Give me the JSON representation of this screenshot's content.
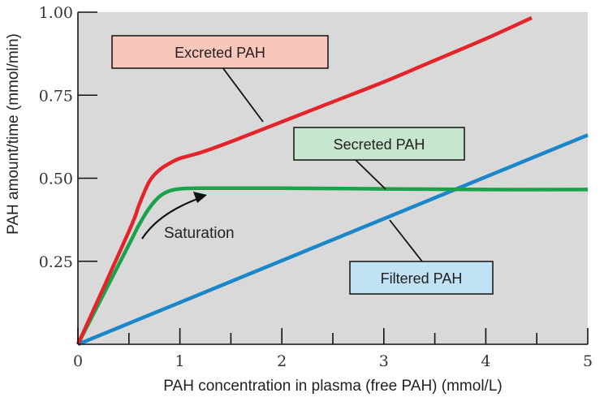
{
  "chart_data": {
    "type": "line",
    "title": "",
    "xlabel": "PAH concentration in plasma (free PAH) (mmol/L)",
    "ylabel": "PAH amount/time (mmol/min)",
    "xlim": [
      0,
      5
    ],
    "ylim": [
      0,
      1.0
    ],
    "x_ticks": [
      0,
      1,
      2,
      3,
      4,
      5
    ],
    "y_ticks": [
      0.25,
      0.5,
      0.75,
      1.0
    ],
    "x_tick_labels": [
      "0",
      "1",
      "2",
      "3",
      "4",
      "5"
    ],
    "y_tick_labels": [
      "0.25",
      "0.50",
      "0.75",
      "1.00"
    ],
    "grid": false,
    "colors": {
      "plot_bg": "#d9d9d9",
      "excreted": "#e3242b",
      "secreted": "#1aa34a",
      "filtered": "#1b87c8",
      "excreted_box": "#f9c7b9",
      "secreted_box": "#c7e6cf",
      "filtered_box": "#c0e2f4"
    },
    "series": [
      {
        "name": "Excreted PAH",
        "color": "#e3242b",
        "points": [
          [
            0,
            0
          ],
          [
            0.5,
            0.34
          ],
          [
            0.6,
            0.42
          ],
          [
            0.7,
            0.49
          ],
          [
            0.8,
            0.525
          ],
          [
            0.9,
            0.545
          ],
          [
            1.0,
            0.56
          ],
          [
            1.2,
            0.577
          ],
          [
            1.5,
            0.61
          ],
          [
            2.0,
            0.67
          ],
          [
            2.5,
            0.73
          ],
          [
            3.0,
            0.79
          ],
          [
            3.5,
            0.855
          ],
          [
            4.0,
            0.92
          ],
          [
            4.45,
            0.983
          ]
        ]
      },
      {
        "name": "Secreted PAH",
        "color": "#1aa34a",
        "points": [
          [
            0,
            0
          ],
          [
            0.5,
            0.3
          ],
          [
            0.6,
            0.36
          ],
          [
            0.7,
            0.41
          ],
          [
            0.8,
            0.445
          ],
          [
            0.9,
            0.462
          ],
          [
            1.0,
            0.468
          ],
          [
            1.2,
            0.47
          ],
          [
            2.0,
            0.47
          ],
          [
            3.0,
            0.468
          ],
          [
            4.0,
            0.466
          ],
          [
            5.0,
            0.466
          ]
        ]
      },
      {
        "name": "Filtered PAH",
        "color": "#1b87c8",
        "points": [
          [
            0,
            0
          ],
          [
            5.0,
            0.63
          ]
        ]
      }
    ],
    "annotations": [
      {
        "text": "Saturation",
        "x": 1.3,
        "y": 0.33
      }
    ],
    "labels": {
      "excreted": "Excreted PAH",
      "secreted": "Secreted PAH",
      "filtered": "Filtered PAH",
      "saturation": "Saturation"
    }
  }
}
